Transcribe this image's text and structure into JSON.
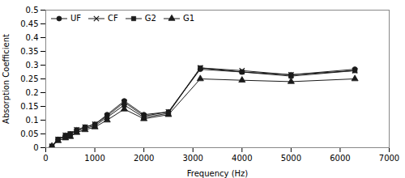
{
  "chart_data": {
    "type": "line",
    "xlabel": "Frequency (Hz)",
    "ylabel": "Absorption Coefficient",
    "x": [
      125,
      250,
      400,
      500,
      630,
      800,
      1000,
      1250,
      1600,
      2000,
      2500,
      3150,
      4000,
      5000,
      6300
    ],
    "series": [
      {
        "name": "UF",
        "color": "#1a1a1a",
        "marker": "circle",
        "values": [
          0.005,
          0.03,
          0.045,
          0.05,
          0.065,
          0.075,
          0.085,
          0.12,
          0.17,
          0.12,
          0.13,
          0.285,
          0.275,
          0.265,
          0.285
        ]
      },
      {
        "name": "CF",
        "color": "#1a1a1a",
        "marker": "x",
        "values": [
          0.005,
          0.03,
          0.045,
          0.05,
          0.065,
          0.075,
          0.085,
          0.115,
          0.165,
          0.115,
          0.13,
          0.29,
          0.28,
          0.265,
          0.28
        ]
      },
      {
        "name": "G2",
        "color": "#1a1a1a",
        "marker": "square",
        "values": [
          0.005,
          0.03,
          0.04,
          0.05,
          0.06,
          0.07,
          0.08,
          0.11,
          0.155,
          0.11,
          0.125,
          0.29,
          0.275,
          0.26,
          0.28
        ]
      },
      {
        "name": "G1",
        "color": "#1a1a1a",
        "marker": "triangle",
        "values": [
          0.005,
          0.025,
          0.035,
          0.04,
          0.055,
          0.065,
          0.075,
          0.1,
          0.14,
          0.105,
          0.12,
          0.25,
          0.245,
          0.24,
          0.25
        ]
      }
    ],
    "xlim": [
      0,
      7000
    ],
    "ylim": [
      0,
      0.5
    ],
    "xticks": [
      0,
      1000,
      2000,
      3000,
      4000,
      5000,
      6000,
      7000
    ],
    "yticks": [
      0,
      0.05,
      0.1,
      0.15,
      0.2,
      0.25,
      0.3,
      0.35,
      0.4,
      0.45,
      0.5
    ],
    "legend": "upper left",
    "grid": false
  }
}
